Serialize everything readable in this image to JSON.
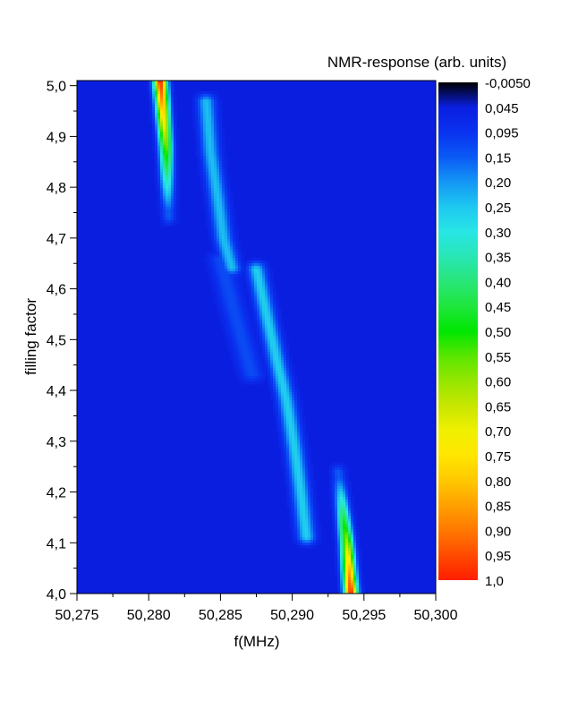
{
  "chart_data": {
    "type": "heatmap",
    "title": "",
    "xlabel": "f(MHz)",
    "ylabel": "filling factor",
    "xlim": [
      50.275,
      50.3
    ],
    "ylim": [
      4.0,
      5.01
    ],
    "x_ticks": [
      50.275,
      50.28,
      50.285,
      50.29,
      50.295,
      50.3
    ],
    "x_tick_labels": [
      "50,275",
      "50,280",
      "50,285",
      "50,290",
      "50,295",
      "50,300"
    ],
    "y_ticks": [
      4.0,
      4.1,
      4.2,
      4.3,
      4.4,
      4.5,
      4.6,
      4.7,
      4.8,
      4.9,
      5.0
    ],
    "y_tick_labels": [
      "4,0",
      "4,1",
      "4,2",
      "4,3",
      "4,4",
      "4,5",
      "4,6",
      "4,7",
      "4,8",
      "4,9",
      "5,0"
    ],
    "background_value": 0.045,
    "ridges": [
      {
        "points": [
          [
            50.2808,
            5.01
          ],
          [
            50.281,
            4.95
          ],
          [
            50.2812,
            4.88
          ],
          [
            50.2813,
            4.8
          ],
          [
            50.2814,
            4.74
          ]
        ],
        "peak": 1.0,
        "width_mhz": 0.00045
      },
      {
        "points": [
          [
            50.284,
            4.97
          ],
          [
            50.2843,
            4.87
          ],
          [
            50.2848,
            4.78
          ],
          [
            50.2852,
            4.7
          ],
          [
            50.2858,
            4.64
          ]
        ],
        "peak": 0.24,
        "width_mhz": 0.0006
      },
      {
        "points": [
          [
            50.285,
            4.66
          ],
          [
            50.2858,
            4.57
          ],
          [
            50.2866,
            4.49
          ],
          [
            50.2872,
            4.43
          ]
        ],
        "peak": 0.13,
        "width_mhz": 0.0008
      },
      {
        "points": [
          [
            50.2875,
            4.64
          ],
          [
            50.2882,
            4.55
          ],
          [
            50.289,
            4.45
          ],
          [
            50.2896,
            4.38
          ],
          [
            50.2902,
            4.28
          ],
          [
            50.2906,
            4.2
          ],
          [
            50.291,
            4.11
          ]
        ],
        "peak": 0.26,
        "width_mhz": 0.0006
      },
      {
        "points": [
          [
            50.2932,
            4.24
          ],
          [
            50.2935,
            4.17
          ],
          [
            50.2938,
            4.1
          ],
          [
            50.294,
            4.03
          ],
          [
            50.2941,
            4.0
          ]
        ],
        "peak": 1.0,
        "width_mhz": 0.00045
      }
    ],
    "colorbar": {
      "title": "NMR-response (arb. units)",
      "labels": [
        "-0,0050",
        "0,045",
        "0,095",
        "0,15",
        "0,20",
        "0,25",
        "0,30",
        "0,35",
        "0,40",
        "0,45",
        "0,50",
        "0,55",
        "0,60",
        "0,65",
        "0,70",
        "0,75",
        "0,80",
        "0,85",
        "0,90",
        "0,95",
        "1,0"
      ],
      "values": [
        -0.005,
        0.045,
        0.095,
        0.15,
        0.2,
        0.25,
        0.3,
        0.35,
        0.4,
        0.45,
        0.5,
        0.55,
        0.6,
        0.65,
        0.7,
        0.75,
        0.8,
        0.85,
        0.9,
        0.95,
        1.0
      ],
      "colors": [
        "#000000",
        "#0a1ee0",
        "#0a32f0",
        "#0a5af5",
        "#1496f5",
        "#1ec8f0",
        "#28e6e6",
        "#28e6b4",
        "#28e678",
        "#1ee63c",
        "#00e600",
        "#5ae600",
        "#96e600",
        "#c8e600",
        "#f0f000",
        "#ffe600",
        "#ffc800",
        "#ffa000",
        "#ff7800",
        "#ff4b00",
        "#ff1e00"
      ]
    }
  }
}
